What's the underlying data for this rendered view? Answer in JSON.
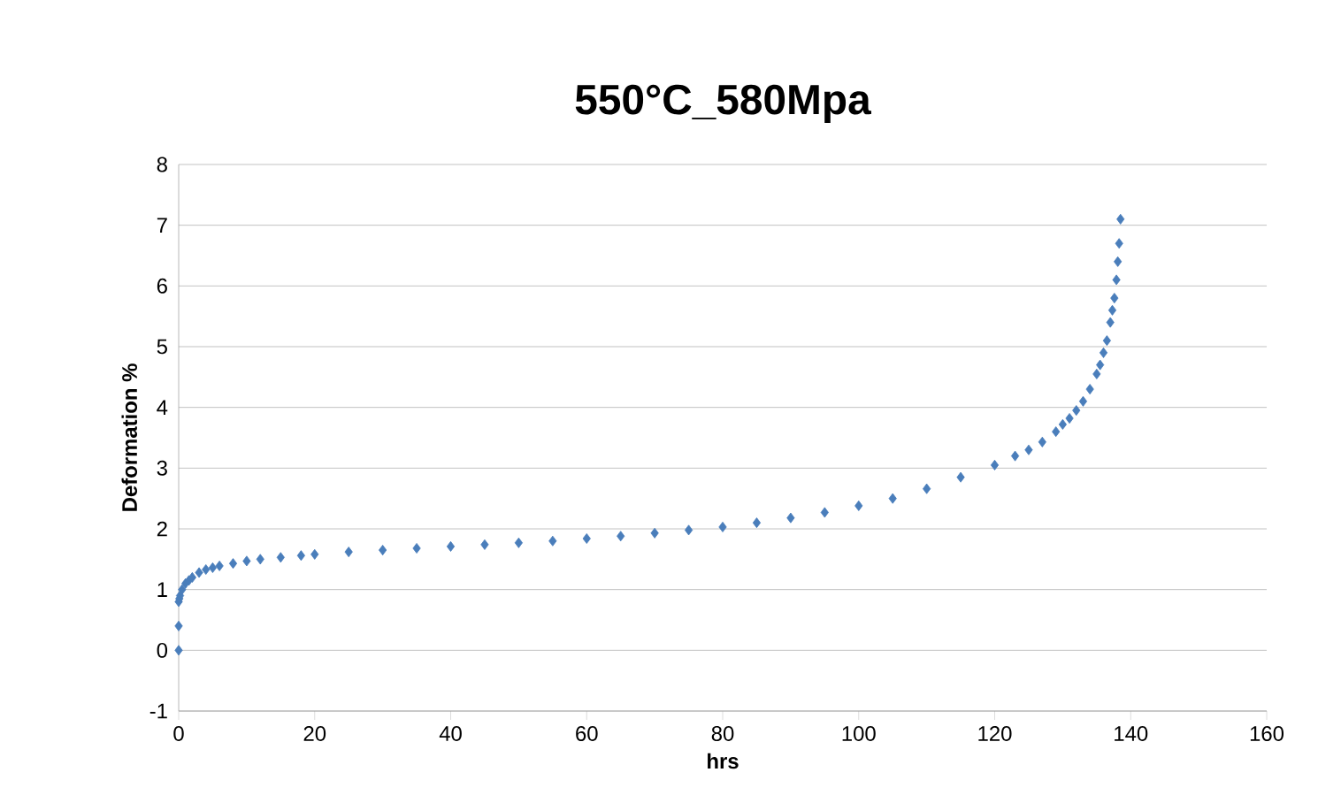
{
  "chart_data": {
    "type": "scatter",
    "title": "550°C_580Mpa",
    "xlabel": "hrs",
    "ylabel": "Deformation %",
    "xlim": [
      0,
      160
    ],
    "ylim": [
      -1,
      8
    ],
    "xticks": [
      0,
      20,
      40,
      60,
      80,
      100,
      120,
      140,
      160
    ],
    "yticks": [
      -1,
      0,
      1,
      2,
      3,
      4,
      5,
      6,
      7,
      8
    ],
    "grid": "y",
    "marker": "diamond",
    "series": [
      {
        "color": "#4a7ebb",
        "x": [
          0,
          0,
          0,
          0.1,
          0.2,
          0.5,
          1,
          1.5,
          2,
          3,
          4,
          5,
          6,
          8,
          10,
          12,
          15,
          18,
          20,
          25,
          30,
          35,
          40,
          45,
          50,
          55,
          60,
          65,
          70,
          75,
          80,
          85,
          90,
          95,
          100,
          105,
          110,
          115,
          120,
          123,
          125,
          127,
          129,
          130,
          131,
          132,
          133,
          134,
          135,
          135.5,
          136,
          136.5,
          137,
          137.3,
          137.6,
          137.9,
          138.1,
          138.3,
          138.5
        ],
        "values": [
          0,
          0.4,
          0.8,
          0.85,
          0.9,
          1.0,
          1.1,
          1.15,
          1.2,
          1.28,
          1.33,
          1.36,
          1.39,
          1.43,
          1.47,
          1.5,
          1.53,
          1.56,
          1.58,
          1.62,
          1.65,
          1.68,
          1.71,
          1.74,
          1.77,
          1.8,
          1.84,
          1.88,
          1.93,
          1.98,
          2.03,
          2.1,
          2.18,
          2.27,
          2.38,
          2.5,
          2.66,
          2.85,
          3.05,
          3.2,
          3.3,
          3.43,
          3.6,
          3.72,
          3.82,
          3.95,
          4.1,
          4.3,
          4.55,
          4.7,
          4.9,
          5.1,
          5.4,
          5.6,
          5.8,
          6.1,
          6.4,
          6.7,
          7.1
        ]
      }
    ]
  }
}
